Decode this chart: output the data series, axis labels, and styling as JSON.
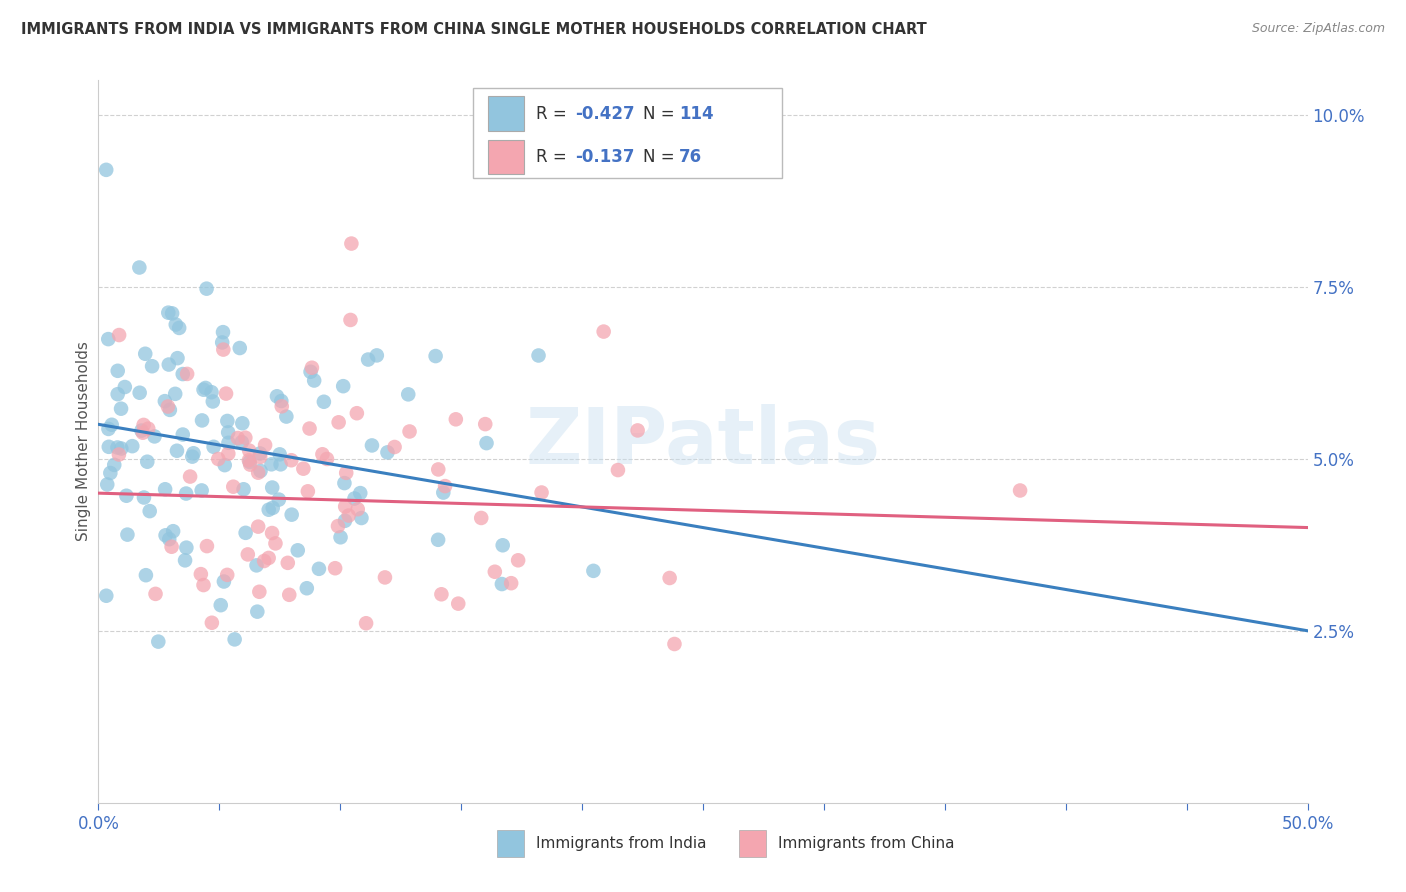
{
  "title": "IMMIGRANTS FROM INDIA VS IMMIGRANTS FROM CHINA SINGLE MOTHER HOUSEHOLDS CORRELATION CHART",
  "source": "Source: ZipAtlas.com",
  "ylabel": "Single Mother Households",
  "xlim": [
    0.0,
    0.5
  ],
  "ylim": [
    0.0,
    0.105
  ],
  "xticks": [
    0.0,
    0.05,
    0.1,
    0.15,
    0.2,
    0.25,
    0.3,
    0.35,
    0.4,
    0.45,
    0.5
  ],
  "ytick_positions": [
    0.025,
    0.05,
    0.075,
    0.1
  ],
  "yticklabels": [
    "2.5%",
    "5.0%",
    "7.5%",
    "10.0%"
  ],
  "india_color": "#92c5de",
  "china_color": "#f4a6b0",
  "india_line_color": "#3a7fbf",
  "china_line_color": "#e06080",
  "india_R": -0.427,
  "india_N": 114,
  "china_R": -0.137,
  "china_N": 76,
  "watermark": "ZIPatlas",
  "background_color": "#ffffff",
  "grid_color": "#cccccc",
  "legend_box_color": "#aaaaaa",
  "tick_color": "#4472c4",
  "title_color": "#333333",
  "source_color": "#888888",
  "label_color": "#555555"
}
